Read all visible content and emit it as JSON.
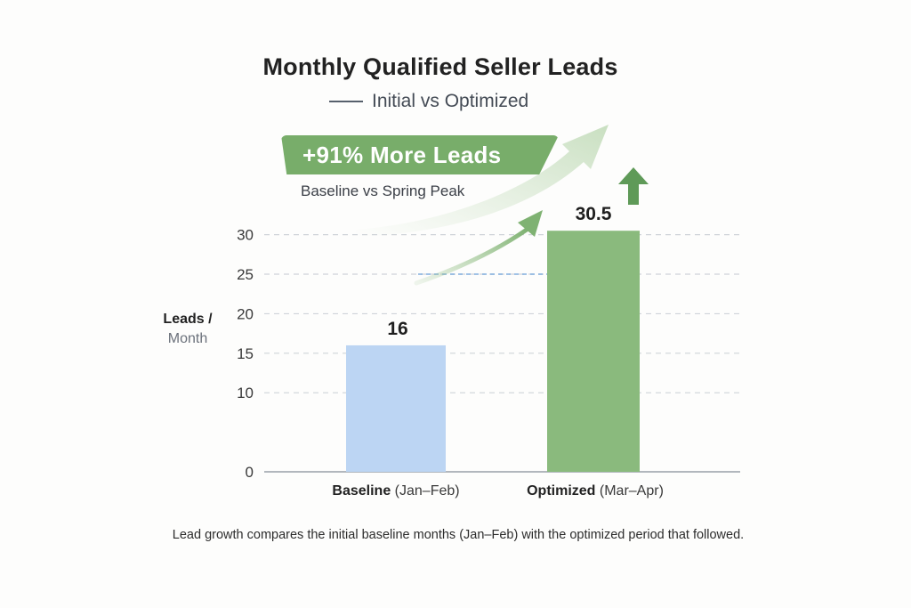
{
  "chart_data": {
    "type": "bar",
    "title": "Monthly Qualified Seller Leads",
    "subtitle": "Initial vs Optimized",
    "categories": [
      {
        "bold": "Baseline",
        "rest": " (Jan–Feb)"
      },
      {
        "bold": "Optimized",
        "rest": " (Mar–Apr)"
      }
    ],
    "values": [
      16,
      30.5
    ],
    "value_labels": [
      "16",
      "30.5"
    ],
    "bar_colors": [
      "#bcd5f3",
      "#8aba7d"
    ],
    "ylabel_line1": "Leads /",
    "ylabel_line2": "Month",
    "yticks": [
      0,
      10,
      15,
      20,
      25,
      30
    ],
    "ylim": [
      0,
      33
    ],
    "reference_value": 25,
    "grid": true,
    "annotation": {
      "callout": "+91% More Leads",
      "callout_sub": "Baseline vs Spring Peak"
    },
    "footnote": "Lead growth compares the initial baseline months (Jan–Feb) with the optimized period that followed.",
    "colors": {
      "accent_green": "#78ad6a",
      "arrow_green": "#5f9a58",
      "reference_line": "#6a9fd8",
      "grid": "#cfd3d8",
      "axis": "#9aa0a8"
    }
  }
}
